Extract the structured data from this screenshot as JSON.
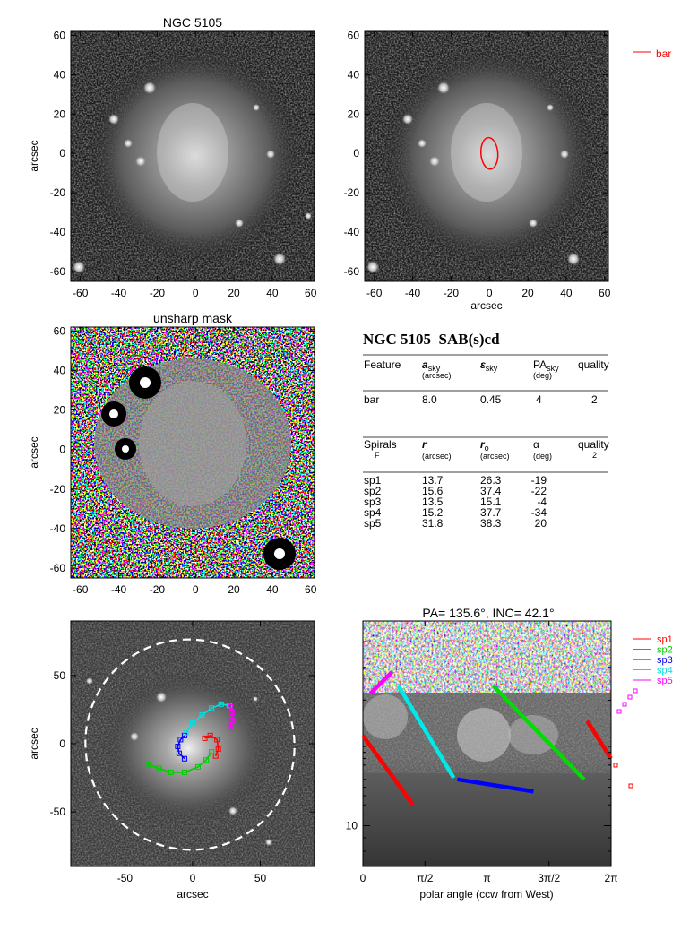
{
  "chart_data": [
    {
      "type": "heatmap",
      "title": "NGC 5105",
      "ylabel": "arcsec",
      "xlabel": "",
      "xlim": [
        -65,
        62
      ],
      "ylim": [
        -65,
        62
      ],
      "xticks": [
        "-60",
        "-40",
        "-20",
        "0",
        "20",
        "40",
        "60"
      ],
      "yticks": [
        "60",
        "40",
        "20",
        "0",
        "-20",
        "-40",
        "-60"
      ]
    },
    {
      "type": "heatmap",
      "title": "",
      "xlabel": "arcsec",
      "ylabel": "",
      "xlim": [
        -65,
        62
      ],
      "ylim": [
        -65,
        62
      ],
      "xticks": [
        "-60",
        "-40",
        "-20",
        "0",
        "20",
        "40",
        "60"
      ],
      "yticks": [
        "60",
        "40",
        "20",
        "0",
        "-20",
        "-40",
        "-60"
      ],
      "legend": [
        {
          "name": "bar",
          "color": "#ff0000"
        }
      ],
      "bar_ellipse": {
        "center": [
          0,
          0
        ],
        "semi_major": 8.0,
        "ellipticity": 0.45,
        "pa_deg": 4
      }
    },
    {
      "type": "heatmap",
      "title": "unsharp mask",
      "ylabel": "arcsec",
      "xlabel": "",
      "xlim": [
        -65,
        62
      ],
      "ylim": [
        -65,
        62
      ],
      "xticks": [
        "-60",
        "-40",
        "-20",
        "0",
        "20",
        "40",
        "60"
      ],
      "yticks": [
        "60",
        "40",
        "20",
        "0",
        "-20",
        "-40",
        "-60"
      ]
    },
    {
      "type": "table",
      "title": "NGC 5105  SAB(s)cd",
      "bar_header": {
        "feature": "Feature",
        "a": "a",
        "a_sub": "sky",
        "a_unit": "(arcsec)",
        "eps": "ε",
        "eps_sub": "sky",
        "pa": "PA",
        "pa_sub": "sky",
        "pa_unit": "(deg)",
        "quality": "quality"
      },
      "bar_rows": [
        {
          "feature": "bar",
          "a": "8.0",
          "eps": "0.45",
          "pa": "4",
          "quality": "2"
        }
      ],
      "spiral_header": {
        "spirals": "Spirals",
        "f": "F",
        "ri": "r",
        "ri_sub": "i",
        "ri_unit": "(arcsec)",
        "ro": "r",
        "ro_sub": "o",
        "ro_unit": "(arcsec)",
        "alpha": "α",
        "alpha_unit": "(deg)",
        "quality": "quality",
        "quality_val": "2"
      },
      "spiral_rows": [
        {
          "name": "sp1",
          "ri": "13.7",
          "ro": "26.3",
          "alpha": "-19"
        },
        {
          "name": "sp2",
          "ri": "15.6",
          "ro": "37.4",
          "alpha": "-22"
        },
        {
          "name": "sp3",
          "ri": "13.5",
          "ro": "15.1",
          "alpha": "-4"
        },
        {
          "name": "sp4",
          "ri": "15.2",
          "ro": "37.7",
          "alpha": "-34"
        },
        {
          "name": "sp5",
          "ri": "31.8",
          "ro": "38.3",
          "alpha": "20"
        }
      ]
    },
    {
      "type": "heatmap",
      "title": "",
      "xlabel": "arcsec",
      "ylabel": "arcsec",
      "xlim": [
        -90,
        90
      ],
      "ylim": [
        -90,
        90
      ],
      "xticks": [
        "-50",
        "0",
        "50"
      ],
      "yticks": [
        "50",
        "0",
        "-50"
      ],
      "series": [
        {
          "name": "sp1",
          "color": "#ff0000",
          "x": [
            17,
            19,
            18,
            13,
            9
          ],
          "y": [
            -9,
            -4,
            3,
            6,
            4
          ]
        },
        {
          "name": "sp2",
          "color": "#00cc00",
          "x": [
            -33,
            -25,
            -16,
            -6,
            4,
            10,
            14
          ],
          "y": [
            -15,
            -18,
            -21,
            -21,
            -17,
            -12,
            -6
          ]
        },
        {
          "name": "sp3",
          "color": "#0000ff",
          "x": [
            -6,
            -10,
            -11,
            -9,
            -6
          ],
          "y": [
            -11,
            -7,
            -2,
            3,
            6
          ]
        },
        {
          "name": "sp4",
          "color": "#00e0e0",
          "x": [
            -5,
            0,
            7,
            14,
            21,
            27
          ],
          "y": [
            8,
            15,
            21,
            26,
            29,
            28
          ]
        },
        {
          "name": "sp5",
          "color": "#ff00ff",
          "x": [
            28,
            29,
            29,
            28
          ],
          "y": [
            12,
            17,
            23,
            27
          ]
        }
      ],
      "outer_ellipse": "dashed white"
    },
    {
      "type": "heatmap",
      "title": "PA= 135.6°, INC=  42.1°",
      "xlabel": "polar angle (ccw from West)",
      "ylabel": "",
      "xlim": [
        0,
        6.2832
      ],
      "ylog": true,
      "ylim": [
        7,
        60
      ],
      "xticks": [
        "0",
        "π/2",
        "π",
        "3π/2",
        "2π"
      ],
      "yticks": [
        "10"
      ],
      "series": [
        {
          "name": "sp1",
          "color": "#ff0000",
          "segments": [
            [
              [
                0,
                22
              ],
              [
                1.27,
                12
              ]
            ],
            [
              [
                5.68,
                25
              ],
              [
                6.28,
                18
              ]
            ]
          ]
        },
        {
          "name": "sp2",
          "color": "#00dd00",
          "segments": [
            [
              [
                3.3,
                34
              ],
              [
                5.6,
                15
              ]
            ]
          ]
        },
        {
          "name": "sp3",
          "color": "#0000ff",
          "segments": [
            [
              [
                2.39,
                15
              ],
              [
                4.32,
                13.5
              ]
            ]
          ]
        },
        {
          "name": "sp4",
          "color": "#00e8e8",
          "segments": [
            [
              [
                0.9,
                34
              ],
              [
                2.3,
                15.2
              ]
            ]
          ]
        },
        {
          "name": "sp5",
          "color": "#ff00ff",
          "segments": [
            [
              [
                0.19,
                31.8
              ],
              [
                0.73,
                38.3
              ]
            ]
          ]
        }
      ],
      "legend": [
        {
          "name": "sp1",
          "color": "#ff0000"
        },
        {
          "name": "sp2",
          "color": "#00cc00"
        },
        {
          "name": "sp3",
          "color": "#0000ff"
        },
        {
          "name": "sp4",
          "color": "#00e0e0"
        },
        {
          "name": "sp5",
          "color": "#ff00ff"
        }
      ]
    }
  ]
}
